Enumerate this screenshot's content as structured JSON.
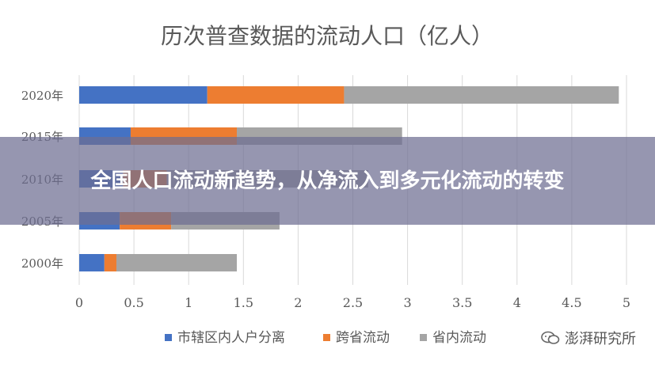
{
  "chart_data": {
    "type": "bar",
    "orientation": "horizontal",
    "stacked": true,
    "title": "历次普查数据的流动人口（亿人）",
    "categories": [
      "2020年",
      "2015年",
      "2010年",
      "2005年",
      "2000年"
    ],
    "series": [
      {
        "name": "市辖区内人户分离",
        "color": "#4472C4",
        "values": [
          1.17,
          0.47,
          0.4,
          0.37,
          0.23
        ]
      },
      {
        "name": "跨省流动",
        "color": "#ED7D31",
        "values": [
          1.25,
          0.97,
          0.4,
          0.47,
          0.11
        ]
      },
      {
        "name": "省内流动",
        "color": "#A5A5A5",
        "values": [
          2.51,
          1.51,
          1.84,
          0.99,
          1.1
        ]
      }
    ],
    "xlim": [
      0,
      5
    ],
    "xticks": [
      "0",
      "0.5",
      "1",
      "1.5",
      "2",
      "2.5",
      "3",
      "3.5",
      "4",
      "4.5",
      "5"
    ],
    "grid": true,
    "legend_position": "bottom"
  },
  "overlay": {
    "headline": "全国人口流动新趋势，从净流入到多元化流动的转变"
  },
  "watermark": {
    "text": "澎湃研究所",
    "icon": "wechat-icon"
  }
}
